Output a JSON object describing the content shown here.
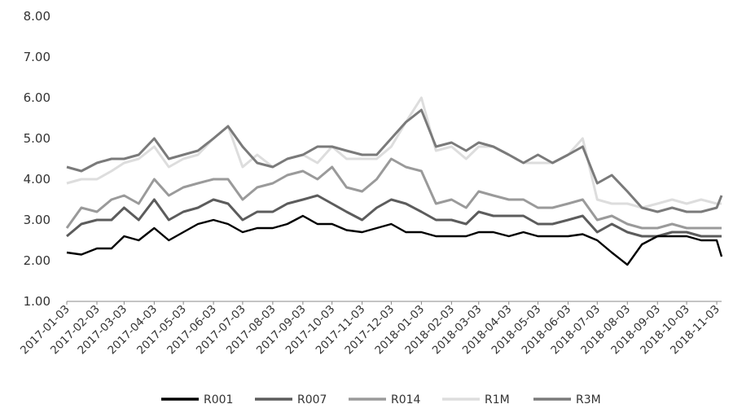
{
  "chart_data": {
    "type": "line",
    "title": "",
    "xlabel": "",
    "ylabel": "",
    "ylim": [
      1.0,
      8.0
    ],
    "y_ticks": [
      "1.00",
      "2.00",
      "3.00",
      "4.00",
      "5.00",
      "6.00",
      "7.00",
      "8.00"
    ],
    "x_range": [
      "2017-01-03",
      "2018-11-08"
    ],
    "x_ticks": [
      "2017-01-03",
      "2017-02-03",
      "2017-03-03",
      "2017-04-03",
      "2017-05-03",
      "2017-06-03",
      "2017-07-03",
      "2017-08-03",
      "2017-09-03",
      "2017-10-03",
      "2017-11-03",
      "2017-12-03",
      "2018-01-03",
      "2018-02-03",
      "2018-03-03",
      "2018-04-03",
      "2018-05-03",
      "2018-06-03",
      "2018-07-03",
      "2018-08-03",
      "2018-09-03",
      "2018-10-03",
      "2018-11-03"
    ],
    "legend_position": "bottom",
    "grid": false,
    "x": [
      "2017-01-03",
      "2017-01-18",
      "2017-02-03",
      "2017-02-18",
      "2017-03-03",
      "2017-03-18",
      "2017-04-03",
      "2017-04-18",
      "2017-05-03",
      "2017-05-18",
      "2017-06-03",
      "2017-06-18",
      "2017-07-03",
      "2017-07-18",
      "2017-08-03",
      "2017-08-18",
      "2017-09-03",
      "2017-09-18",
      "2017-10-03",
      "2017-10-18",
      "2017-11-03",
      "2017-11-18",
      "2017-12-03",
      "2017-12-18",
      "2018-01-03",
      "2018-01-18",
      "2018-02-03",
      "2018-02-18",
      "2018-03-03",
      "2018-03-18",
      "2018-04-03",
      "2018-04-18",
      "2018-05-03",
      "2018-05-18",
      "2018-06-03",
      "2018-06-18",
      "2018-07-03",
      "2018-07-18",
      "2018-08-03",
      "2018-08-18",
      "2018-09-03",
      "2018-09-18",
      "2018-10-03",
      "2018-10-18",
      "2018-11-03",
      "2018-11-08"
    ],
    "series": [
      {
        "name": "R001",
        "color": "#000000",
        "values": [
          2.2,
          2.15,
          2.3,
          2.3,
          2.6,
          2.5,
          2.8,
          2.5,
          2.7,
          2.9,
          3.0,
          2.9,
          2.7,
          2.8,
          2.8,
          2.9,
          3.1,
          2.9,
          2.9,
          2.75,
          2.7,
          2.8,
          2.9,
          2.7,
          2.7,
          2.6,
          2.6,
          2.6,
          2.7,
          2.7,
          2.6,
          2.7,
          2.6,
          2.6,
          2.6,
          2.65,
          2.5,
          2.2,
          1.9,
          2.4,
          2.6,
          2.6,
          2.6,
          2.5,
          2.5,
          2.1
        ]
      },
      {
        "name": "R007",
        "color": "#5c5c5c",
        "values": [
          2.6,
          2.9,
          3.0,
          3.0,
          3.3,
          3.0,
          3.5,
          3.0,
          3.2,
          3.3,
          3.5,
          3.4,
          3.0,
          3.2,
          3.2,
          3.4,
          3.5,
          3.6,
          3.4,
          3.2,
          3.0,
          3.3,
          3.5,
          3.4,
          3.2,
          3.0,
          3.0,
          2.9,
          3.2,
          3.1,
          3.1,
          3.1,
          2.9,
          2.9,
          3.0,
          3.1,
          2.7,
          2.9,
          2.7,
          2.6,
          2.6,
          2.7,
          2.7,
          2.6,
          2.6,
          2.6
        ]
      },
      {
        "name": "R014",
        "color": "#9a9a9a",
        "values": [
          2.8,
          3.3,
          3.2,
          3.5,
          3.6,
          3.4,
          4.0,
          3.6,
          3.8,
          3.9,
          4.0,
          4.0,
          3.5,
          3.8,
          3.9,
          4.1,
          4.2,
          4.0,
          4.3,
          3.8,
          3.7,
          4.0,
          4.5,
          4.3,
          4.2,
          3.4,
          3.5,
          3.3,
          3.7,
          3.6,
          3.5,
          3.5,
          3.3,
          3.3,
          3.4,
          3.5,
          3.0,
          3.1,
          2.9,
          2.8,
          2.8,
          2.9,
          2.8,
          2.8,
          2.8,
          2.8
        ]
      },
      {
        "name": "R1M",
        "color": "#dddddd",
        "values": [
          3.9,
          4.0,
          4.0,
          4.2,
          4.4,
          4.5,
          4.8,
          4.3,
          4.5,
          4.6,
          5.0,
          5.3,
          4.3,
          4.6,
          4.3,
          4.5,
          4.6,
          4.4,
          4.8,
          4.5,
          4.5,
          4.5,
          4.8,
          5.4,
          6.0,
          4.7,
          4.8,
          4.5,
          4.8,
          4.8,
          4.6,
          4.4,
          4.4,
          4.4,
          4.6,
          5.0,
          3.5,
          3.4,
          3.4,
          3.3,
          3.4,
          3.5,
          3.4,
          3.5,
          3.4,
          3.4
        ]
      },
      {
        "name": "R3M",
        "color": "#7a7a7a",
        "values": [
          4.3,
          4.2,
          4.4,
          4.5,
          4.5,
          4.6,
          5.0,
          4.5,
          4.6,
          4.7,
          5.0,
          5.3,
          4.8,
          4.4,
          4.3,
          4.5,
          4.6,
          4.8,
          4.8,
          4.7,
          4.6,
          4.6,
          5.0,
          5.4,
          5.7,
          4.8,
          4.9,
          4.7,
          4.9,
          4.8,
          4.6,
          4.4,
          4.6,
          4.4,
          4.6,
          4.8,
          3.9,
          4.1,
          3.7,
          3.3,
          3.2,
          3.3,
          3.2,
          3.2,
          3.3,
          3.6
        ]
      }
    ]
  }
}
